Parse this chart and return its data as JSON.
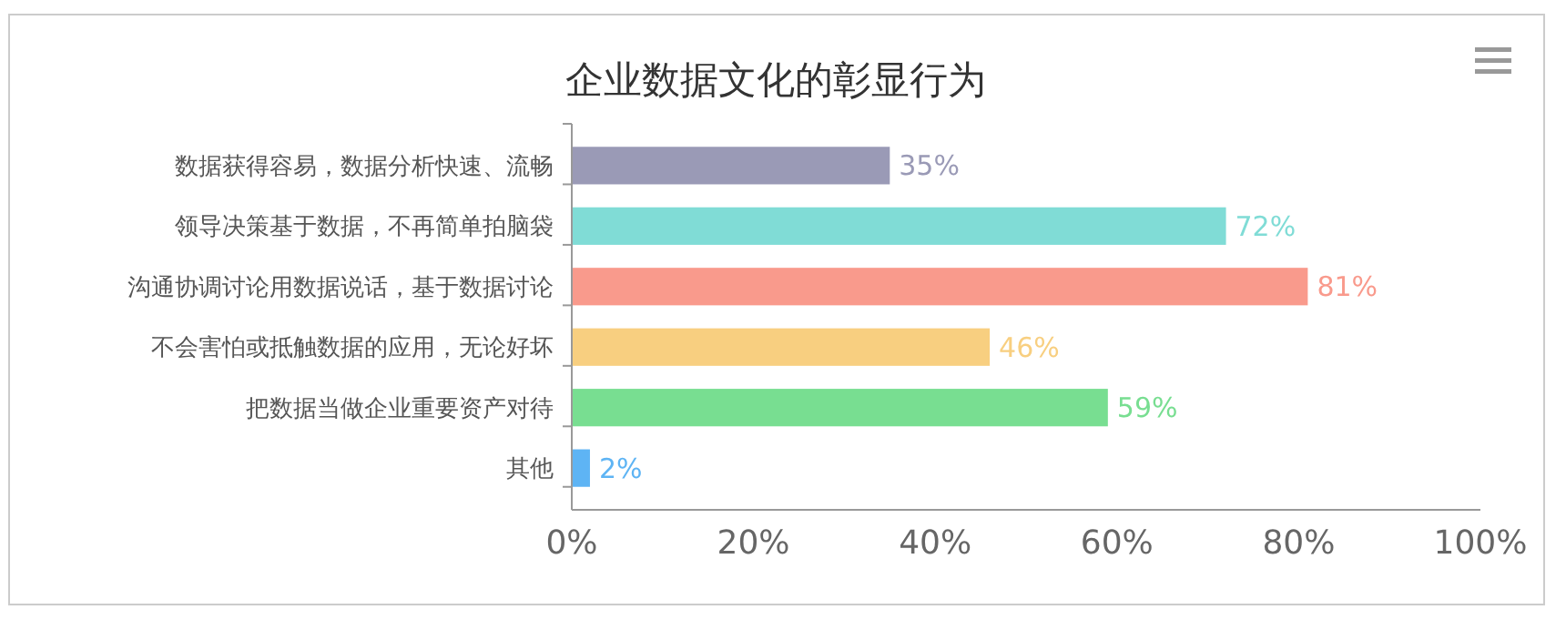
{
  "chart_data": {
    "type": "bar",
    "orientation": "horizontal",
    "title": "企业数据文化的彰显行为",
    "categories": [
      "数据获得容易，数据分析快速、流畅",
      "领导决策基于数据，不再简单拍脑袋",
      "沟通协调讨论用数据说话，基于数据讨论",
      "不会害怕或抵触数据的应用，无论好坏",
      "把数据当做企业重要资产对待",
      "其他"
    ],
    "values": [
      35,
      72,
      81,
      46,
      59,
      2
    ],
    "colors": [
      "#9a9ab6",
      "#80dcd6",
      "#f99a8c",
      "#f8cf80",
      "#78de91",
      "#5eb4f4"
    ],
    "value_labels": [
      "35%",
      "72%",
      "81%",
      "46%",
      "59%",
      "2%"
    ],
    "xlim": [
      0,
      100
    ],
    "xticks": [
      {
        "value": 0,
        "label": "0%"
      },
      {
        "value": 20,
        "label": "20%"
      },
      {
        "value": 40,
        "label": "40%"
      },
      {
        "value": 60,
        "label": "60%"
      },
      {
        "value": 80,
        "label": "80%"
      },
      {
        "value": 100,
        "label": "100%"
      }
    ]
  }
}
